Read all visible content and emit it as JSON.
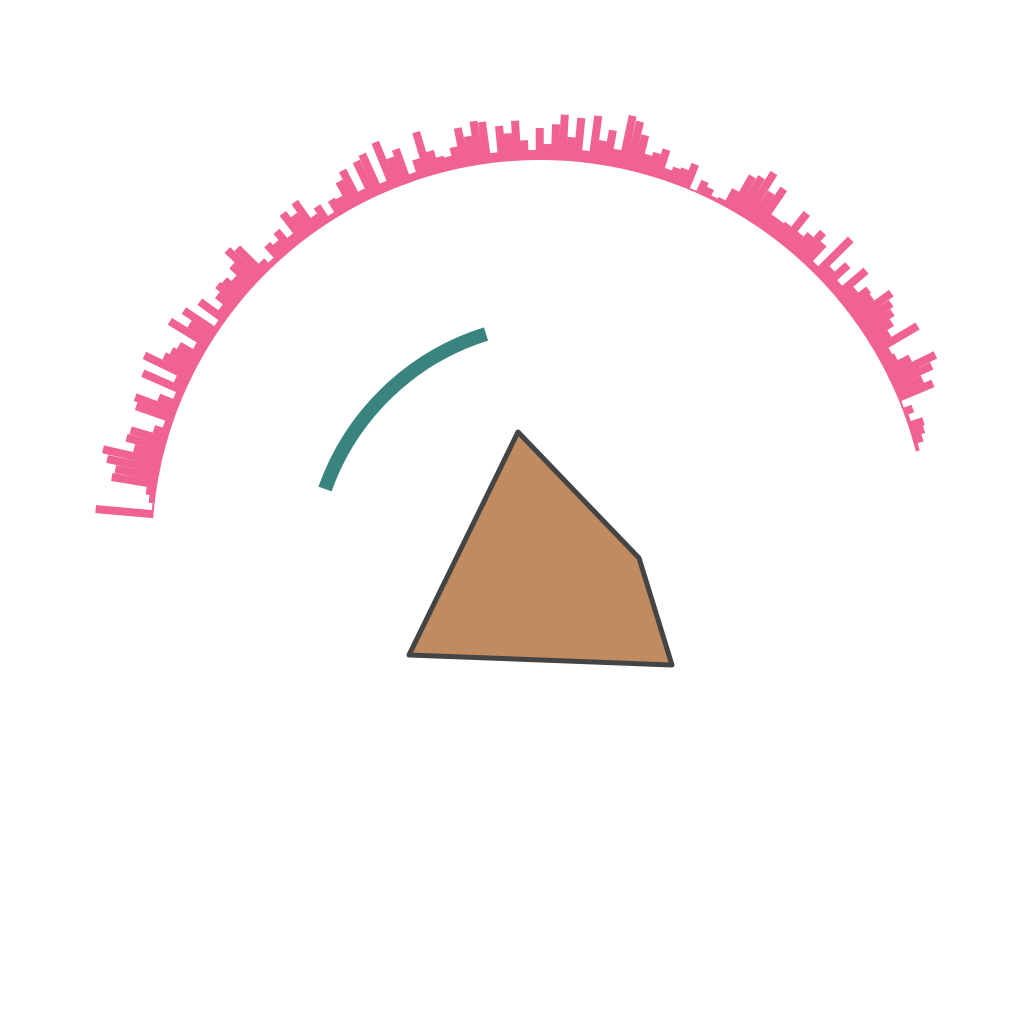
{
  "colors": {
    "background": "#ffffff",
    "bars": "#f06292",
    "arc": "#3a8480",
    "polygon_fill": "#c08b60",
    "polygon_stroke": "#444444"
  },
  "ring_bar_lengths": [
    4,
    10,
    14,
    16,
    4,
    10,
    2,
    38,
    30,
    44,
    52,
    28,
    16,
    14,
    50,
    22,
    30,
    36,
    40,
    46,
    28,
    30,
    20,
    40,
    12,
    30,
    16,
    50,
    8,
    28,
    36,
    26,
    20,
    40,
    20,
    18,
    18,
    46,
    36,
    54,
    44,
    40,
    20,
    6,
    4,
    10,
    14,
    2,
    26,
    18,
    16,
    12,
    30,
    24,
    20,
    38,
    50,
    54,
    18,
    36,
    24,
    48,
    12,
    44,
    24,
    46,
    36,
    16,
    32,
    10,
    20,
    40,
    28,
    36,
    10,
    42,
    44,
    30,
    40,
    22,
    14,
    16,
    24,
    46,
    20,
    8,
    36,
    30,
    50,
    10,
    44,
    40,
    12,
    38,
    30,
    16,
    18,
    6,
    20,
    14,
    36,
    26,
    34,
    12,
    24,
    16,
    20,
    6,
    12,
    38,
    44,
    30,
    20,
    26,
    28,
    22,
    12,
    32,
    6,
    40,
    28,
    46,
    12,
    26,
    30,
    34,
    52,
    14,
    46,
    8,
    22,
    44,
    40,
    8,
    16,
    38,
    40,
    30,
    60,
    54,
    44,
    46,
    10,
    6,
    2,
    58
  ]
}
